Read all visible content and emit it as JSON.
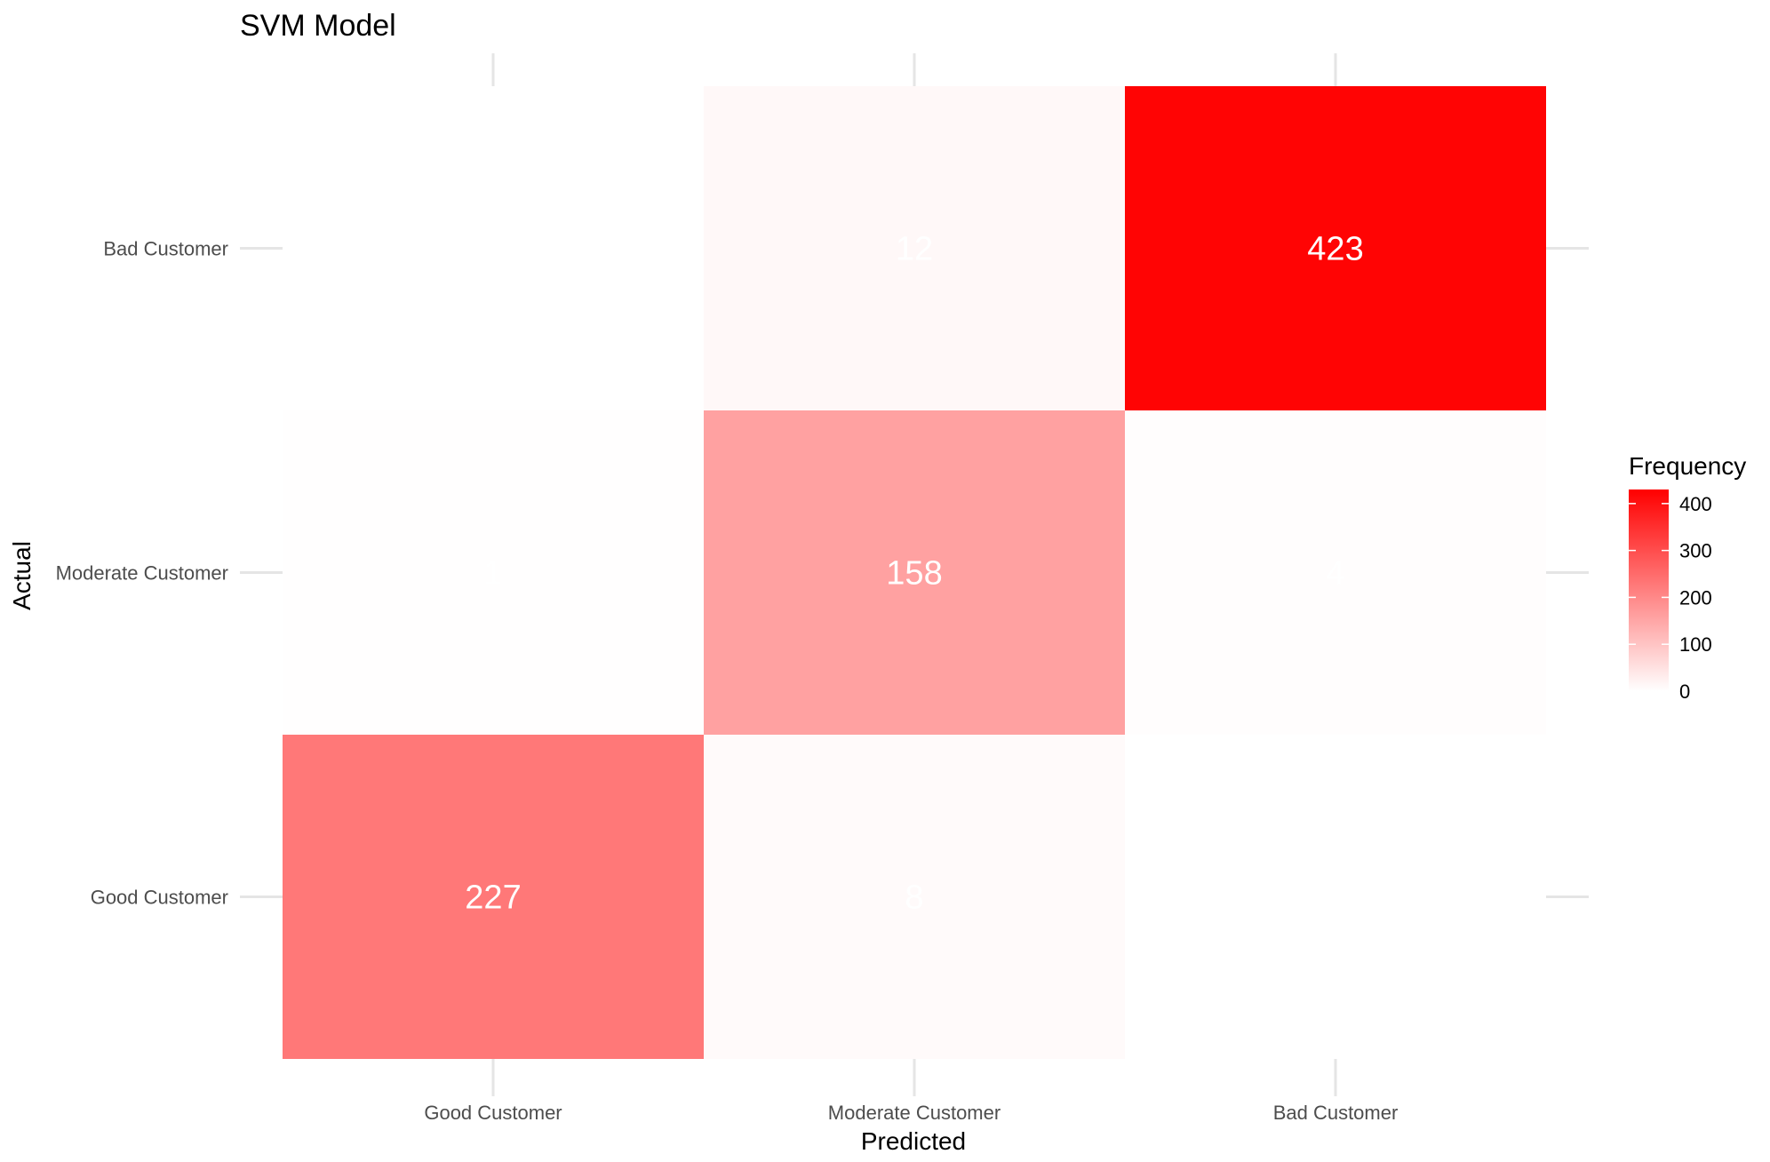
{
  "chart_data": {
    "type": "heatmap",
    "title": "SVM Model",
    "xlabel": "Predicted",
    "ylabel": "Actual",
    "x_categories": [
      "Good Customer",
      "Moderate Customer",
      "Bad Customer"
    ],
    "y_categories": [
      "Good Customer",
      "Moderate Customer",
      "Bad Customer"
    ],
    "cells": [
      {
        "predicted": "Good Customer",
        "actual": "Good Customer",
        "value": 227
      },
      {
        "predicted": "Moderate Customer",
        "actual": "Good Customer",
        "value": 8
      },
      {
        "predicted": "Bad Customer",
        "actual": "Good Customer",
        "value": 0
      },
      {
        "predicted": "Good Customer",
        "actual": "Moderate Customer",
        "value": 1
      },
      {
        "predicted": "Moderate Customer",
        "actual": "Moderate Customer",
        "value": 158
      },
      {
        "predicted": "Bad Customer",
        "actual": "Moderate Customer",
        "value": 4
      },
      {
        "predicted": "Good Customer",
        "actual": "Bad Customer",
        "value": 0
      },
      {
        "predicted": "Moderate Customer",
        "actual": "Bad Customer",
        "value": 12
      },
      {
        "predicted": "Bad Customer",
        "actual": "Bad Customer",
        "value": 423
      }
    ],
    "legend": {
      "title": "Frequency",
      "ticks": [
        0,
        100,
        200,
        300,
        400
      ],
      "low_color": "#ffffff",
      "high_color": "#ff0000",
      "placement": "right"
    },
    "grid": true
  }
}
